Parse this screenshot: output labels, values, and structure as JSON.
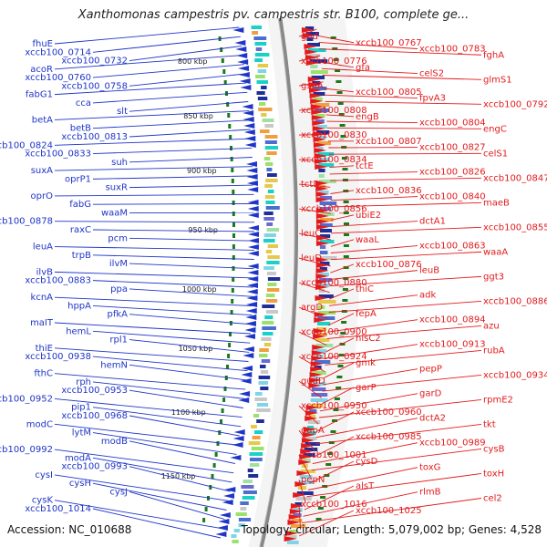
{
  "title": "Xanthomonas campestris pv. campestris str. B100, complete ge...",
  "footer": {
    "accession": "Accession: NC_010688",
    "stats": "Topology: circular; Length: 5,079,002 bp; Genes: 4,528"
  },
  "colors": {
    "forward": "#e31a1c",
    "reverse": "#1f35c8",
    "ruler": "#1a7a1a",
    "backbone": "#888888"
  },
  "ruler_labels": [
    "800 kbp",
    "850 kbp",
    "900 kbp",
    "950 kbp",
    "1000 kbp",
    "1050 kbp",
    "1100 kbp",
    "1150 kbp"
  ],
  "left_labels": [
    "fhuE",
    "xccb100_0714",
    "xccb100_0732",
    "acoR",
    "xccb100_0760",
    "xccb100_0758",
    "fabG1",
    "cca",
    "slt",
    "betA",
    "betB",
    "xccb100_0813",
    "xccb100_0824",
    "xccb100_0833",
    "suh",
    "suxA",
    "oprP1",
    "suxR",
    "oprO",
    "fabG",
    "waaM",
    "xccb100_0878",
    "raxC",
    "pcm",
    "leuA",
    "trpB",
    "ilvM",
    "ilvB",
    "xccb100_0883",
    "ppa",
    "kcnA",
    "hppA",
    "pfkA",
    "maIT",
    "hemL",
    "rpl1",
    "thiE",
    "xccb100_0938",
    "hemN",
    "fthC",
    "rph",
    "xccb100_0953",
    "xccb100_0952",
    "pip1",
    "xccb100_0968",
    "modC",
    "lytM",
    "modB",
    "xccb100_0992",
    "modA",
    "xccb100_0993",
    "cysI",
    "cysH",
    "cysJ",
    "cysK",
    "xccb100_1014"
  ],
  "right_labels": [
    "gnd",
    "xccb100_0767",
    "xccb100_0783",
    "fghA",
    "xccb100_0776",
    "gfa",
    "celS2",
    "glmS1",
    "gshA",
    "xccb100_0805",
    "fpvA3",
    "xccb100_0792",
    "xccb100_0808",
    "engB",
    "xccb100_0804",
    "engC",
    "xccb100_0830",
    "xccb100_0807",
    "xccb100_0827",
    "celS1",
    "xccb100_0834",
    "tctE",
    "xccb100_0826",
    "xccb100_0847",
    "tctD",
    "xccb100_0836",
    "xccb100_0840",
    "maeB",
    "xccb100_0856",
    "ubiE2",
    "dctA1",
    "xccb100_0855",
    "leuC",
    "waaL",
    "xccb100_0863",
    "waaA",
    "leuD",
    "xccb100_0876",
    "leuB",
    "ggt3",
    "xccb100_0880",
    "thiC",
    "adk",
    "xccb100_0886",
    "argD",
    "fepA",
    "xccb100_0894",
    "azu",
    "xccb100_0900",
    "hisC2",
    "xccb100_0913",
    "rubA",
    "xccb100_0924",
    "gmk",
    "pepP",
    "xccb100_0934",
    "gudD",
    "garP",
    "garD",
    "rpmE2",
    "xccb100_0950",
    "xccb100_0960",
    "dctA2",
    "tkt",
    "gapA",
    "xccb100_0985",
    "xccb100_0989",
    "cysB",
    "xccb100_1001",
    "cysD",
    "toxG",
    "toxH",
    "pepN",
    "alsT",
    "rlmB",
    "cel2",
    "xccb100_1016",
    "xccb100_1025"
  ]
}
